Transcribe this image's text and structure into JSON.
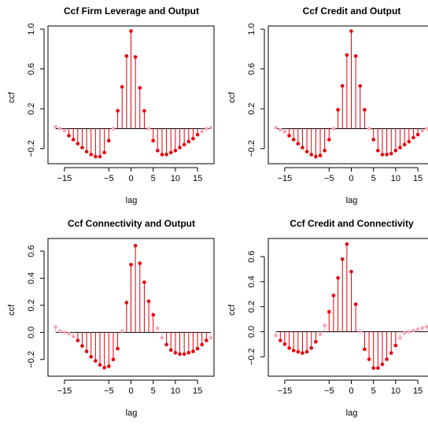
{
  "colors": {
    "strong": "#e8000b",
    "weak": "#f7a8b8",
    "text": "#000000"
  },
  "chart_data": [
    {
      "type": "bar",
      "title": "Ccf  Firm Leverage and Output",
      "xlabel": "lag",
      "ylabel": "ccf",
      "xlim": [
        -18,
        18
      ],
      "ylim": [
        -0.32,
        1.0
      ],
      "xticks": [
        -15,
        -5,
        0,
        5,
        10,
        15
      ],
      "yticks": [
        -0.2,
        0.2,
        0.6,
        1.0
      ],
      "ytick_labels": [
        "-0.2",
        "0.2",
        "0.6",
        "1.0"
      ],
      "x": [
        -17,
        -16,
        -15,
        -14,
        -13,
        -12,
        -11,
        -10,
        -9,
        -8,
        -7,
        -6,
        -5,
        -4,
        -3,
        -2,
        -1,
        0,
        1,
        2,
        3,
        4,
        5,
        6,
        7,
        8,
        9,
        10,
        11,
        12,
        13,
        14,
        15,
        16,
        17,
        18
      ],
      "values": [
        0.02,
        0.0,
        -0.02,
        -0.07,
        -0.11,
        -0.15,
        -0.19,
        -0.23,
        -0.26,
        -0.28,
        -0.28,
        -0.24,
        -0.12,
        0.0,
        0.18,
        0.42,
        0.73,
        0.98,
        0.72,
        0.41,
        0.18,
        0.0,
        -0.12,
        -0.22,
        -0.26,
        -0.26,
        -0.24,
        -0.22,
        -0.19,
        -0.16,
        -0.13,
        -0.1,
        -0.06,
        -0.03,
        0.0,
        0.01
      ],
      "significance": 0.06
    },
    {
      "type": "bar",
      "title": "Ccf Credit and Output",
      "xlabel": "lag",
      "ylabel": "ccf",
      "xlim": [
        -18,
        18
      ],
      "ylim": [
        -0.32,
        1.0
      ],
      "xticks": [
        -15,
        -5,
        0,
        5,
        10,
        15
      ],
      "yticks": [
        -0.2,
        0.2,
        0.6,
        1.0
      ],
      "ytick_labels": [
        "-0.2",
        "0.2",
        "0.6",
        "1.0"
      ],
      "x": [
        -17,
        -16,
        -15,
        -14,
        -13,
        -12,
        -11,
        -10,
        -9,
        -8,
        -7,
        -6,
        -5,
        -4,
        -3,
        -2,
        -1,
        0,
        1,
        2,
        3,
        4,
        5,
        6,
        7,
        8,
        9,
        10,
        11,
        12,
        13,
        14,
        15,
        16,
        17,
        18
      ],
      "values": [
        0.01,
        -0.01,
        -0.03,
        -0.07,
        -0.11,
        -0.15,
        -0.19,
        -0.23,
        -0.26,
        -0.28,
        -0.27,
        -0.22,
        -0.11,
        0.0,
        0.19,
        0.43,
        0.74,
        0.98,
        0.73,
        0.43,
        0.19,
        0.0,
        -0.11,
        -0.22,
        -0.26,
        -0.26,
        -0.25,
        -0.22,
        -0.19,
        -0.16,
        -0.13,
        -0.09,
        -0.06,
        -0.02,
        0.0,
        0.01
      ],
      "significance": 0.06
    },
    {
      "type": "bar",
      "title": "Ccf Connectivity and Output",
      "xlabel": "lag",
      "ylabel": "ccf",
      "xlim": [
        -18,
        18
      ],
      "ylim": [
        -0.3,
        0.67
      ],
      "xticks": [
        -15,
        -5,
        0,
        5,
        10,
        15
      ],
      "yticks": [
        -0.2,
        0.0,
        0.2,
        0.4,
        0.6
      ],
      "ytick_labels": [
        "-0.2",
        "0.0",
        "0.2",
        "0.4",
        "0.6"
      ],
      "x": [
        -17,
        -16,
        -15,
        -14,
        -13,
        -12,
        -11,
        -10,
        -9,
        -8,
        -7,
        -6,
        -5,
        -4,
        -3,
        -2,
        -1,
        0,
        1,
        2,
        3,
        4,
        5,
        6,
        7,
        8,
        9,
        10,
        11,
        12,
        13,
        14,
        15,
        16,
        17,
        18
      ],
      "values": [
        0.04,
        0.01,
        0.0,
        -0.01,
        -0.03,
        -0.06,
        -0.1,
        -0.14,
        -0.18,
        -0.21,
        -0.24,
        -0.26,
        -0.25,
        -0.2,
        -0.12,
        0.01,
        0.22,
        0.5,
        0.64,
        0.51,
        0.37,
        0.23,
        0.13,
        0.03,
        -0.04,
        -0.09,
        -0.13,
        -0.15,
        -0.16,
        -0.16,
        -0.15,
        -0.14,
        -0.12,
        -0.09,
        -0.06,
        -0.04
      ],
      "significance": 0.06
    },
    {
      "type": "bar",
      "title": "Ccf Credit and Connectivity",
      "xlabel": "lag",
      "ylabel": "ccf",
      "xlim": [
        -18,
        18
      ],
      "ylim": [
        -0.33,
        0.72
      ],
      "xticks": [
        -15,
        -5,
        0,
        5,
        10,
        15
      ],
      "yticks": [
        -0.2,
        0.0,
        0.2,
        0.4,
        0.6
      ],
      "ytick_labels": [
        "-0.2",
        "0.0",
        "0.2",
        "0.4",
        "0.6"
      ],
      "x": [
        -17,
        -16,
        -15,
        -14,
        -13,
        -12,
        -11,
        -10,
        -9,
        -8,
        -7,
        -6,
        -5,
        -4,
        -3,
        -2,
        -1,
        0,
        1,
        2,
        3,
        4,
        5,
        6,
        7,
        8,
        9,
        10,
        11,
        12,
        13,
        14,
        15,
        16,
        17,
        18
      ],
      "values": [
        -0.03,
        -0.07,
        -0.1,
        -0.13,
        -0.15,
        -0.16,
        -0.17,
        -0.16,
        -0.13,
        -0.08,
        -0.02,
        0.05,
        0.16,
        0.29,
        0.43,
        0.58,
        0.7,
        0.48,
        0.22,
        0.0,
        -0.14,
        -0.22,
        -0.29,
        -0.29,
        -0.26,
        -0.22,
        -0.17,
        -0.11,
        -0.05,
        -0.01,
        0.0,
        0.01,
        0.02,
        0.03,
        0.04,
        0.04
      ],
      "significance": 0.06
    }
  ]
}
